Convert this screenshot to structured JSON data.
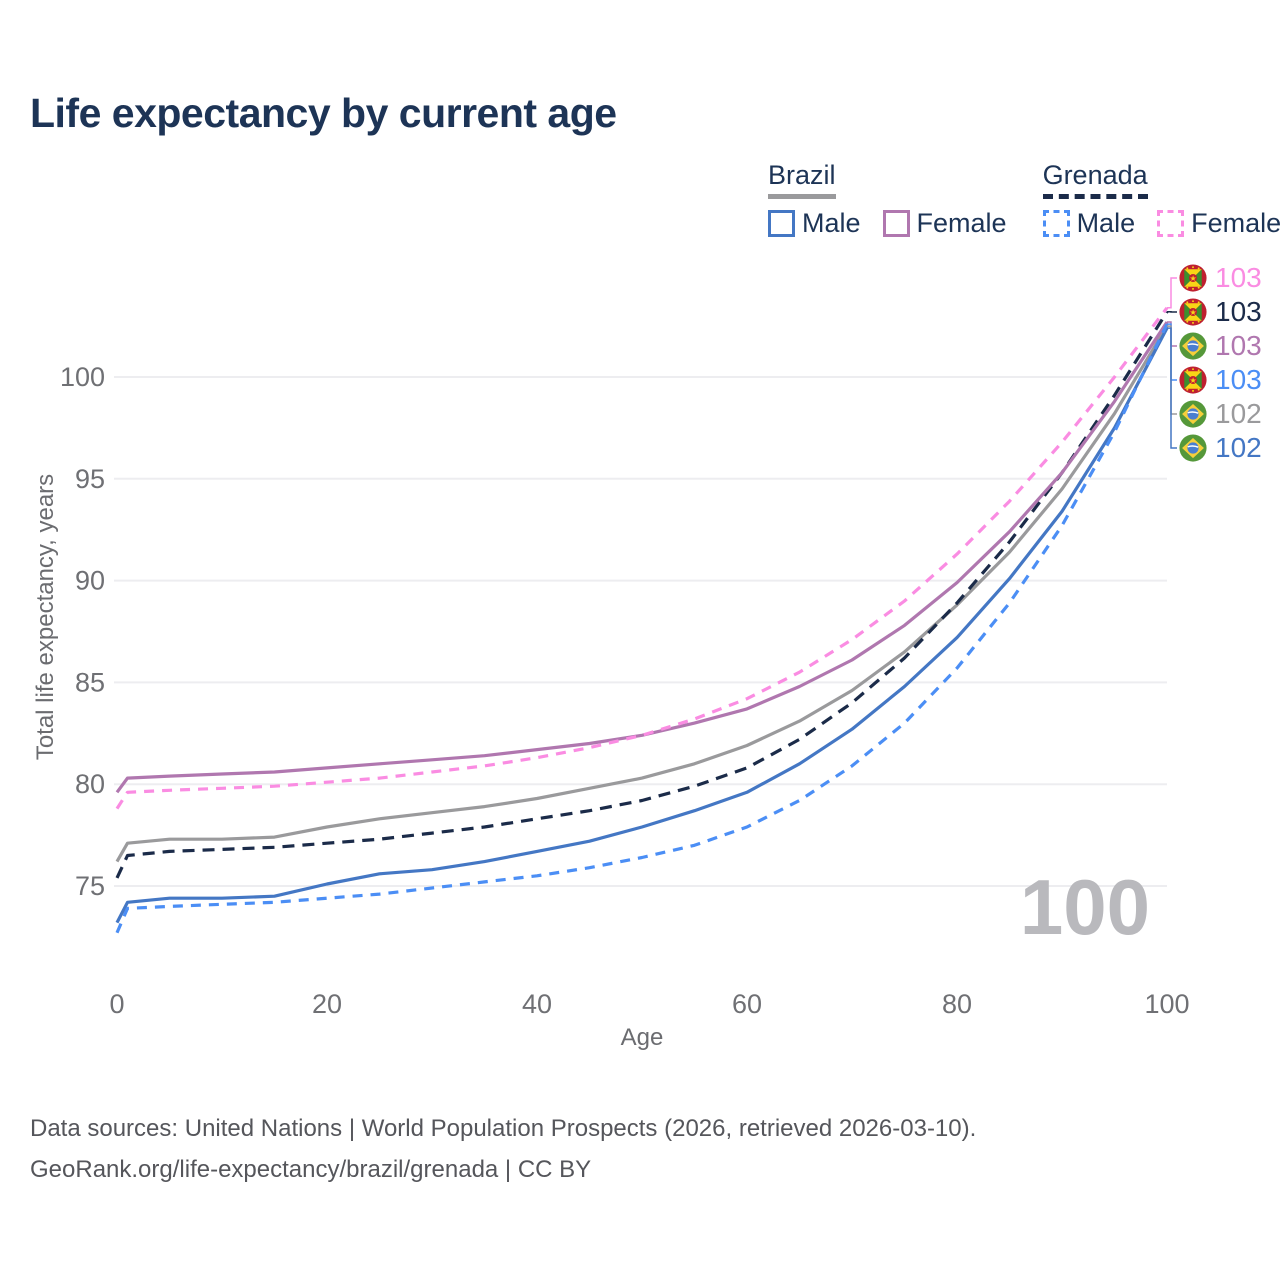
{
  "title": "Life expectancy by current age",
  "legend": {
    "groups": [
      {
        "country": "Brazil",
        "line_style": "solid",
        "line_color": "#9a9a9c",
        "items": [
          {
            "label": "Male",
            "color": "#4477c4",
            "dash": false
          },
          {
            "label": "Female",
            "color": "#b077af",
            "dash": false
          }
        ]
      },
      {
        "country": "Grenada",
        "line_style": "dashed",
        "line_color": "#1b2b49",
        "items": [
          {
            "label": "Male",
            "color": "#4b8ef5",
            "dash": true
          },
          {
            "label": "Female",
            "color": "#fa8ce2",
            "dash": true
          }
        ]
      }
    ]
  },
  "chart_data": {
    "type": "line",
    "title": "Life expectancy by current age",
    "xlabel": "Age",
    "ylabel": "Total life expectancy, years",
    "xlim": [
      0,
      100
    ],
    "ylim": [
      72,
      104.5
    ],
    "xticks": [
      0,
      20,
      40,
      60,
      80,
      100
    ],
    "yticks": [
      75,
      80,
      85,
      90,
      95,
      100
    ],
    "grid": "horizontal",
    "legend_position": "top-right",
    "x": [
      0,
      1,
      5,
      10,
      15,
      20,
      25,
      30,
      35,
      40,
      45,
      50,
      55,
      60,
      65,
      70,
      75,
      80,
      85,
      90,
      95,
      100
    ],
    "series": [
      {
        "key": "brazil_both",
        "name": "Brazil",
        "country": "brazil",
        "sex": "both",
        "color": "#9a9a9c",
        "dash": false,
        "values": [
          76.2,
          77.1,
          77.3,
          77.3,
          77.4,
          77.9,
          78.3,
          78.6,
          78.9,
          79.3,
          79.8,
          80.3,
          81.0,
          81.9,
          83.1,
          84.6,
          86.5,
          88.8,
          91.4,
          94.5,
          98.2,
          102.5
        ]
      },
      {
        "key": "grenada_both",
        "name": "Grenada",
        "country": "grenada",
        "sex": "both",
        "color": "#1b2b49",
        "dash": true,
        "values": [
          75.4,
          76.5,
          76.7,
          76.8,
          76.9,
          77.1,
          77.3,
          77.6,
          77.9,
          78.3,
          78.7,
          79.2,
          79.9,
          80.8,
          82.2,
          84.0,
          86.2,
          88.9,
          91.9,
          95.3,
          99.1,
          103.2
        ]
      },
      {
        "key": "brazil_female",
        "name": "Brazil Female",
        "country": "brazil",
        "sex": "female",
        "color": "#b077af",
        "dash": false,
        "values": [
          79.6,
          80.3,
          80.4,
          80.5,
          80.6,
          80.8,
          81.0,
          81.2,
          81.4,
          81.7,
          82.0,
          82.4,
          83.0,
          83.7,
          84.8,
          86.1,
          87.8,
          89.9,
          92.4,
          95.3,
          98.8,
          102.7
        ]
      },
      {
        "key": "grenada_female",
        "name": "Grenada Female",
        "country": "grenada",
        "sex": "female",
        "color": "#fa8ce2",
        "dash": true,
        "values": [
          78.8,
          79.6,
          79.7,
          79.8,
          79.9,
          80.1,
          80.3,
          80.6,
          80.9,
          81.3,
          81.8,
          82.4,
          83.2,
          84.2,
          85.5,
          87.1,
          89.0,
          91.3,
          93.9,
          96.8,
          100.0,
          103.4
        ]
      },
      {
        "key": "brazil_male",
        "name": "Brazil Male",
        "country": "brazil",
        "sex": "male",
        "color": "#4477c4",
        "dash": false,
        "values": [
          73.2,
          74.2,
          74.4,
          74.4,
          74.5,
          75.1,
          75.6,
          75.8,
          76.2,
          76.7,
          77.2,
          77.9,
          78.7,
          79.6,
          81.0,
          82.7,
          84.8,
          87.2,
          90.1,
          93.4,
          97.5,
          102.4
        ]
      },
      {
        "key": "grenada_male",
        "name": "Grenada Male",
        "country": "grenada",
        "sex": "male",
        "color": "#4b8ef5",
        "dash": true,
        "values": [
          72.7,
          73.9,
          74.0,
          74.1,
          74.2,
          74.4,
          74.6,
          74.9,
          75.2,
          75.5,
          75.9,
          76.4,
          77.0,
          77.9,
          79.2,
          80.9,
          83.0,
          85.7,
          88.9,
          92.7,
          97.3,
          102.6
        ]
      }
    ],
    "end_labels": [
      {
        "value": "103",
        "series": "grenada_female",
        "country": "grenada"
      },
      {
        "value": "103",
        "series": "grenada_both",
        "country": "grenada"
      },
      {
        "value": "103",
        "series": "brazil_female",
        "country": "brazil"
      },
      {
        "value": "103",
        "series": "grenada_male",
        "country": "grenada"
      },
      {
        "value": "102",
        "series": "brazil_both",
        "country": "brazil"
      },
      {
        "value": "102",
        "series": "brazil_male",
        "country": "brazil"
      }
    ]
  },
  "watermark": "100",
  "sources": {
    "line1": "Data sources: United Nations | World Population Prospects (2026, retrieved 2026-03-10).",
    "line2": "GeoRank.org/life-expectancy/brazil/grenada | CC BY"
  },
  "colors": {
    "title_text": "#1d3456",
    "tick_text": "#6f7074",
    "gridline": "#ededf0",
    "watermark": "#b9b9bd",
    "source_text": "#55565b"
  }
}
